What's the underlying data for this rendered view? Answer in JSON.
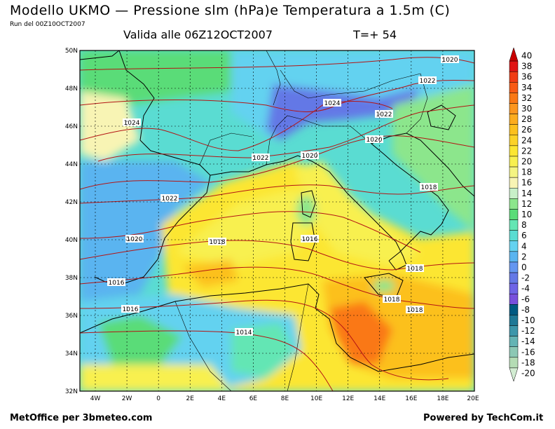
{
  "header": {
    "title": "Modello UKMO — Pressione slm (hPa)e Temperatura a 1.5m (C)",
    "run": "Run del 00Z10OCT2007",
    "valid": "Valida alle 06Z12OCT2007",
    "step": "T=+ 54"
  },
  "footer": {
    "left": "MetOffice per 3bmeteo.com",
    "right": "Powered by TechCom.it"
  },
  "axes": {
    "lat_labels": [
      "50N",
      "48N",
      "46N",
      "44N",
      "42N",
      "40N",
      "38N",
      "36N",
      "34N",
      "32N"
    ],
    "lon_labels": [
      "4W",
      "2W",
      "0",
      "2E",
      "4E",
      "6E",
      "8E",
      "10E",
      "12E",
      "14E",
      "16E",
      "18E",
      "20E"
    ]
  },
  "colorbar": {
    "labels": [
      "40",
      "38",
      "36",
      "34",
      "32",
      "30",
      "28",
      "26",
      "24",
      "22",
      "20",
      "18",
      "16",
      "14",
      "12",
      "10",
      "8",
      "6",
      "4",
      "2",
      "0",
      "-2",
      "-4",
      "-6",
      "-8",
      "-10",
      "-12",
      "-14",
      "-16",
      "-18",
      "-20"
    ],
    "colors": [
      "#c80000",
      "#e01414",
      "#f03c14",
      "#f85a14",
      "#fa7814",
      "#fc961e",
      "#fcac1e",
      "#fcc01e",
      "#fcd228",
      "#fce632",
      "#f8f050",
      "#f4f482",
      "#f8f4b4",
      "#c8f0c8",
      "#8ce68c",
      "#5adc78",
      "#64e6b4",
      "#5adcd2",
      "#64d2f0",
      "#5ab4f0",
      "#6496f0",
      "#6478e6",
      "#6e64e6",
      "#7850dc",
      "#005a82",
      "#1e7896",
      "#3c96aa",
      "#64b4b4",
      "#8cc8b4",
      "#b4dcb4",
      "#d2ecd2"
    ]
  },
  "isobars": [
    {
      "label": "1020"
    },
    {
      "label": "1022"
    },
    {
      "label": "1024"
    },
    {
      "label": "1022"
    },
    {
      "label": "1024"
    },
    {
      "label": "1020"
    },
    {
      "label": "1022"
    },
    {
      "label": "1020"
    },
    {
      "label": "1022"
    },
    {
      "label": "1018"
    },
    {
      "label": "1020"
    },
    {
      "label": "1018"
    },
    {
      "label": "1016"
    },
    {
      "label": "1018"
    },
    {
      "label": "1016"
    },
    {
      "label": "1018"
    },
    {
      "label": "1018"
    },
    {
      "label": "1016"
    },
    {
      "label": "1014"
    }
  ]
}
